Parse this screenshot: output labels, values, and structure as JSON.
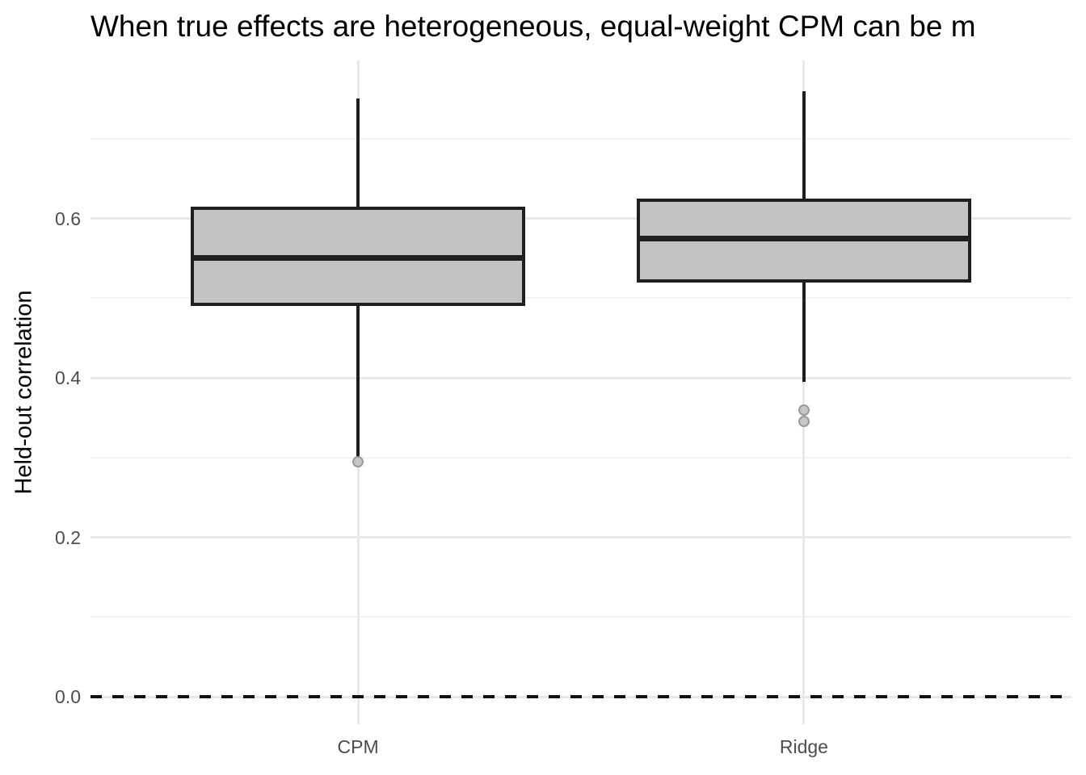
{
  "title": "When true effects are heterogeneous, equal-weight CPM can be m",
  "axes": {
    "y_label": "Held-out correlation",
    "y_tick_labels": [
      "0.0",
      "0.2",
      "0.4",
      "0.6"
    ],
    "x_tick_labels": [
      "CPM",
      "Ridge"
    ]
  },
  "chart_data": {
    "type": "boxplot",
    "title": "When true effects are heterogeneous, equal-weight CPM can be m",
    "xlabel": "",
    "ylabel": "Held-out correlation",
    "categories": [
      "CPM",
      "Ridge"
    ],
    "series": [
      {
        "name": "CPM",
        "whisker_low": 0.3,
        "q1": 0.49,
        "median": 0.55,
        "q3": 0.615,
        "whisker_high": 0.75,
        "outliers": [
          0.295
        ]
      },
      {
        "name": "Ridge",
        "whisker_low": 0.395,
        "q1": 0.52,
        "median": 0.575,
        "q3": 0.625,
        "whisker_high": 0.76,
        "outliers": [
          0.36,
          0.345
        ]
      }
    ],
    "reference_line": {
      "value": 0.0,
      "style": "dashed"
    },
    "ylim": [
      -0.0344,
      0.798
    ],
    "y_major_ticks": [
      0.0,
      0.2,
      0.4,
      0.6
    ],
    "y_minor_ticks": [
      0.1,
      0.3,
      0.5,
      0.7
    ],
    "grid": true,
    "legend": "none"
  },
  "colors": {
    "box_fill": "#c3c3c3",
    "box_border": "#1f1f1f",
    "outlier_fill": "#c6c6c6",
    "outlier_border": "#9a9a9a",
    "grid_major": "#e8e8e8",
    "grid_minor": "#f3f3f3",
    "tick_label": "#4d4d4d",
    "ref_line": "#111111",
    "title": "#000000"
  }
}
